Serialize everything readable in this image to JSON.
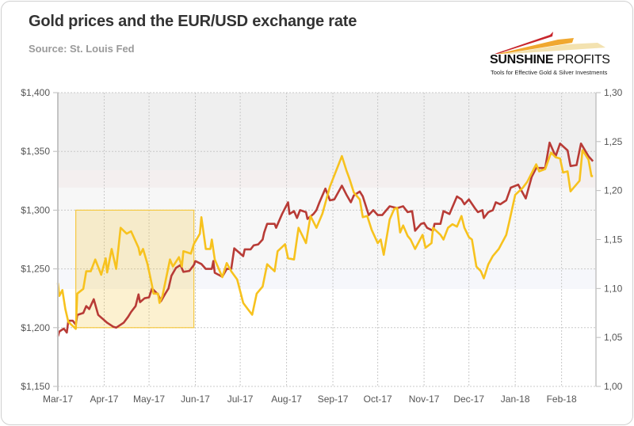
{
  "chart_data": {
    "type": "line",
    "title": "Gold prices and the EUR/USD exchange rate",
    "subtitle": "Source: St. Louis Fed",
    "xlim": [
      "2017-03-01",
      "2018-02-24"
    ],
    "x_tick_labels": [
      "Mar-17",
      "Apr-17",
      "May-17",
      "Jun-17",
      "Jul-17",
      "Aug-17",
      "Sep-17",
      "Oct-17",
      "Nov-17",
      "Dec-17",
      "Jan-18",
      "Feb-18"
    ],
    "x_ticks": [
      "2017-03-01",
      "2017-04-01",
      "2017-05-01",
      "2017-06-01",
      "2017-07-01",
      "2017-08-01",
      "2017-09-01",
      "2017-10-01",
      "2017-11-01",
      "2017-12-01",
      "2018-01-01",
      "2018-02-01"
    ],
    "y_left": {
      "lim": [
        1150,
        1400
      ],
      "ticks": [
        1150,
        1200,
        1250,
        1300,
        1350,
        1400
      ],
      "tick_labels": [
        "$1,150",
        "$1,200",
        "$1,250",
        "$1,300",
        "$1,350",
        "$1,400"
      ]
    },
    "y_right": {
      "lim": [
        1.0,
        1.3
      ],
      "ticks": [
        1.0,
        1.05,
        1.1,
        1.15,
        1.2,
        1.25,
        1.3
      ],
      "tick_labels": [
        "1,00",
        "1,05",
        "1,10",
        "1,15",
        "1,20",
        "1,25",
        "1,30"
      ]
    },
    "grid": true,
    "legend": "none",
    "series": [
      {
        "axis": "left",
        "color": "#f7c21e",
        "points": [
          [
            "2017-03-01",
            1238
          ],
          [
            "2017-03-02",
            1227
          ],
          [
            "2017-03-04",
            1232
          ],
          [
            "2017-03-06",
            1216
          ],
          [
            "2017-03-08",
            1205
          ],
          [
            "2017-03-13",
            1199
          ],
          [
            "2017-03-14",
            1229
          ],
          [
            "2017-03-18",
            1233
          ],
          [
            "2017-03-20",
            1248
          ],
          [
            "2017-03-23",
            1248
          ],
          [
            "2017-03-26",
            1258
          ],
          [
            "2017-03-30",
            1245
          ],
          [
            "2017-04-02",
            1259
          ],
          [
            "2017-04-03",
            1247
          ],
          [
            "2017-04-06",
            1267
          ],
          [
            "2017-04-09",
            1250
          ],
          [
            "2017-04-12",
            1285
          ],
          [
            "2017-04-16",
            1280
          ],
          [
            "2017-04-19",
            1282
          ],
          [
            "2017-04-24",
            1268
          ],
          [
            "2017-04-25",
            1262
          ],
          [
            "2017-04-27",
            1267
          ],
          [
            "2017-04-30",
            1254
          ],
          [
            "2017-05-03",
            1236
          ],
          [
            "2017-05-04",
            1229
          ],
          [
            "2017-05-07",
            1229
          ],
          [
            "2017-05-08",
            1221
          ],
          [
            "2017-05-10",
            1227
          ],
          [
            "2017-05-15",
            1258
          ],
          [
            "2017-05-17",
            1252
          ],
          [
            "2017-05-21",
            1260
          ],
          [
            "2017-05-23",
            1252
          ],
          [
            "2017-05-24",
            1265
          ],
          [
            "2017-05-29",
            1263
          ],
          [
            "2017-05-31",
            1271
          ],
          [
            "2017-06-04",
            1280
          ],
          [
            "2017-06-05",
            1294
          ],
          [
            "2017-06-08",
            1267
          ],
          [
            "2017-06-11",
            1267
          ],
          [
            "2017-06-12",
            1275
          ],
          [
            "2017-06-14",
            1258
          ],
          [
            "2017-06-19",
            1243
          ],
          [
            "2017-06-22",
            1255
          ],
          [
            "2017-06-25",
            1248
          ],
          [
            "2017-06-29",
            1241
          ],
          [
            "2017-07-03",
            1221
          ],
          [
            "2017-07-06",
            1216
          ],
          [
            "2017-07-09",
            1211
          ],
          [
            "2017-07-12",
            1229
          ],
          [
            "2017-07-16",
            1235
          ],
          [
            "2017-07-19",
            1254
          ],
          [
            "2017-07-24",
            1248
          ],
          [
            "2017-07-26",
            1265
          ],
          [
            "2017-07-31",
            1271
          ],
          [
            "2017-08-02",
            1259
          ],
          [
            "2017-08-06",
            1258
          ],
          [
            "2017-08-09",
            1285
          ],
          [
            "2017-08-14",
            1272
          ],
          [
            "2017-08-17",
            1295
          ],
          [
            "2017-08-21",
            1285
          ],
          [
            "2017-08-25",
            1297
          ],
          [
            "2017-08-30",
            1320
          ],
          [
            "2017-09-07",
            1346
          ],
          [
            "2017-09-10",
            1334
          ],
          [
            "2017-09-12",
            1327
          ],
          [
            "2017-09-15",
            1315
          ],
          [
            "2017-09-19",
            1309
          ],
          [
            "2017-09-21",
            1294
          ],
          [
            "2017-09-24",
            1295
          ],
          [
            "2017-09-27",
            1283
          ],
          [
            "2017-10-01",
            1272
          ],
          [
            "2017-10-03",
            1275
          ],
          [
            "2017-10-05",
            1262
          ],
          [
            "2017-10-09",
            1292
          ],
          [
            "2017-10-12",
            1301
          ],
          [
            "2017-10-14",
            1302
          ],
          [
            "2017-10-16",
            1281
          ],
          [
            "2017-10-18",
            1287
          ],
          [
            "2017-10-21",
            1278
          ],
          [
            "2017-10-23",
            1275
          ],
          [
            "2017-10-26",
            1267
          ],
          [
            "2017-10-31",
            1279
          ],
          [
            "2017-11-02",
            1268
          ],
          [
            "2017-11-06",
            1272
          ],
          [
            "2017-11-07",
            1285
          ],
          [
            "2017-11-12",
            1279
          ],
          [
            "2017-11-14",
            1275
          ],
          [
            "2017-11-17",
            1285
          ],
          [
            "2017-11-20",
            1288
          ],
          [
            "2017-11-23",
            1286
          ],
          [
            "2017-11-26",
            1295
          ],
          [
            "2017-11-28",
            1285
          ],
          [
            "2017-12-01",
            1277
          ],
          [
            "2017-12-03",
            1275
          ],
          [
            "2017-12-06",
            1252
          ],
          [
            "2017-12-09",
            1248
          ],
          [
            "2017-12-11",
            1242
          ],
          [
            "2017-12-14",
            1254
          ],
          [
            "2017-12-17",
            1261
          ],
          [
            "2017-12-21",
            1267
          ],
          [
            "2017-12-26",
            1279
          ],
          [
            "2017-12-28",
            1290
          ],
          [
            "2018-01-01",
            1313
          ],
          [
            "2018-01-06",
            1319
          ],
          [
            "2018-01-09",
            1324
          ],
          [
            "2018-01-15",
            1339
          ],
          [
            "2018-01-17",
            1333
          ],
          [
            "2018-01-21",
            1335
          ],
          [
            "2018-01-25",
            1349
          ],
          [
            "2018-01-28",
            1345
          ],
          [
            "2018-01-31",
            1344
          ],
          [
            "2018-02-02",
            1332
          ],
          [
            "2018-02-05",
            1333
          ],
          [
            "2018-02-07",
            1316
          ],
          [
            "2018-02-13",
            1325
          ],
          [
            "2018-02-15",
            1351
          ],
          [
            "2018-02-19",
            1343
          ],
          [
            "2018-02-21",
            1329
          ],
          [
            "2018-02-22",
            1329
          ]
        ]
      },
      {
        "axis": "right",
        "color": "#b83b36",
        "points": [
          [
            "2017-03-01",
            1.051
          ],
          [
            "2017-03-02",
            1.056
          ],
          [
            "2017-03-05",
            1.059
          ],
          [
            "2017-03-07",
            1.055
          ],
          [
            "2017-03-08",
            1.067
          ],
          [
            "2017-03-11",
            1.067
          ],
          [
            "2017-03-13",
            1.063
          ],
          [
            "2017-03-14",
            1.073
          ],
          [
            "2017-03-18",
            1.075
          ],
          [
            "2017-03-20",
            1.082
          ],
          [
            "2017-03-22",
            1.079
          ],
          [
            "2017-03-25",
            1.089
          ],
          [
            "2017-03-28",
            1.073
          ],
          [
            "2017-03-31",
            1.069
          ],
          [
            "2017-04-03",
            1.065
          ],
          [
            "2017-04-07",
            1.061
          ],
          [
            "2017-04-09",
            1.06
          ],
          [
            "2017-04-14",
            1.065
          ],
          [
            "2017-04-17",
            1.071
          ],
          [
            "2017-04-19",
            1.076
          ],
          [
            "2017-04-22",
            1.082
          ],
          [
            "2017-04-24",
            1.094
          ],
          [
            "2017-04-25",
            1.086
          ],
          [
            "2017-04-28",
            1.09
          ],
          [
            "2017-05-01",
            1.091
          ],
          [
            "2017-05-03",
            1.1
          ],
          [
            "2017-05-07",
            1.094
          ],
          [
            "2017-05-09",
            1.087
          ],
          [
            "2017-05-12",
            1.095
          ],
          [
            "2017-05-14",
            1.1
          ],
          [
            "2017-05-16",
            1.113
          ],
          [
            "2017-05-19",
            1.121
          ],
          [
            "2017-05-22",
            1.124
          ],
          [
            "2017-05-24",
            1.117
          ],
          [
            "2017-05-28",
            1.118
          ],
          [
            "2017-05-31",
            1.124
          ],
          [
            "2017-06-01",
            1.128
          ],
          [
            "2017-06-05",
            1.125
          ],
          [
            "2017-06-08",
            1.12
          ],
          [
            "2017-06-12",
            1.12
          ],
          [
            "2017-06-13",
            1.128
          ],
          [
            "2017-06-14",
            1.116
          ],
          [
            "2017-06-19",
            1.112
          ],
          [
            "2017-06-22",
            1.12
          ],
          [
            "2017-06-25",
            1.12
          ],
          [
            "2017-06-27",
            1.141
          ],
          [
            "2017-07-03",
            1.133
          ],
          [
            "2017-07-04",
            1.14
          ],
          [
            "2017-07-08",
            1.14
          ],
          [
            "2017-07-10",
            1.144
          ],
          [
            "2017-07-13",
            1.145
          ],
          [
            "2017-07-16",
            1.15
          ],
          [
            "2017-07-17",
            1.157
          ],
          [
            "2017-07-19",
            1.166
          ],
          [
            "2017-07-24",
            1.166
          ],
          [
            "2017-07-25",
            1.162
          ],
          [
            "2017-07-29",
            1.176
          ],
          [
            "2017-08-02",
            1.188
          ],
          [
            "2017-08-03",
            1.176
          ],
          [
            "2017-08-06",
            1.179
          ],
          [
            "2017-08-08",
            1.172
          ],
          [
            "2017-08-10",
            1.18
          ],
          [
            "2017-08-14",
            1.178
          ],
          [
            "2017-08-15",
            1.171
          ],
          [
            "2017-08-19",
            1.176
          ],
          [
            "2017-08-21",
            1.18
          ],
          [
            "2017-08-23",
            1.188
          ],
          [
            "2017-08-27",
            1.202
          ],
          [
            "2017-08-30",
            1.19
          ],
          [
            "2017-09-02",
            1.191
          ],
          [
            "2017-09-07",
            1.205
          ],
          [
            "2017-09-10",
            1.196
          ],
          [
            "2017-09-13",
            1.188
          ],
          [
            "2017-09-15",
            1.195
          ],
          [
            "2017-09-19",
            1.199
          ],
          [
            "2017-09-21",
            1.194
          ],
          [
            "2017-09-25",
            1.175
          ],
          [
            "2017-09-28",
            1.18
          ],
          [
            "2017-10-01",
            1.175
          ],
          [
            "2017-10-04",
            1.175
          ],
          [
            "2017-10-09",
            1.184
          ],
          [
            "2017-10-14",
            1.182
          ],
          [
            "2017-10-18",
            1.184
          ],
          [
            "2017-10-21",
            1.178
          ],
          [
            "2017-10-24",
            1.179
          ],
          [
            "2017-10-26",
            1.159
          ],
          [
            "2017-10-30",
            1.166
          ],
          [
            "2017-11-01",
            1.167
          ],
          [
            "2017-11-03",
            1.162
          ],
          [
            "2017-11-07",
            1.159
          ],
          [
            "2017-11-08",
            1.166
          ],
          [
            "2017-11-12",
            1.166
          ],
          [
            "2017-11-14",
            1.179
          ],
          [
            "2017-11-18",
            1.176
          ],
          [
            "2017-11-23",
            1.194
          ],
          [
            "2017-11-26",
            1.191
          ],
          [
            "2017-11-28",
            1.186
          ],
          [
            "2017-12-01",
            1.191
          ],
          [
            "2017-12-05",
            1.182
          ],
          [
            "2017-12-07",
            1.178
          ],
          [
            "2017-12-10",
            1.18
          ],
          [
            "2017-12-11",
            1.172
          ],
          [
            "2017-12-14",
            1.178
          ],
          [
            "2017-12-17",
            1.18
          ],
          [
            "2017-12-19",
            1.188
          ],
          [
            "2017-12-22",
            1.186
          ],
          [
            "2017-12-26",
            1.19
          ],
          [
            "2017-12-29",
            1.203
          ],
          [
            "2018-01-03",
            1.206
          ],
          [
            "2018-01-08",
            1.192
          ],
          [
            "2018-01-12",
            1.214
          ],
          [
            "2018-01-15",
            1.223
          ],
          [
            "2018-01-21",
            1.223
          ],
          [
            "2018-01-24",
            1.249
          ],
          [
            "2018-01-28",
            1.235
          ],
          [
            "2018-01-31",
            1.248
          ],
          [
            "2018-02-05",
            1.241
          ],
          [
            "2018-02-07",
            1.225
          ],
          [
            "2018-02-11",
            1.226
          ],
          [
            "2018-02-14",
            1.248
          ],
          [
            "2018-02-19",
            1.235
          ],
          [
            "2018-02-22",
            1.23
          ]
        ]
      }
    ],
    "annotations": [
      {
        "type": "highlight-box",
        "x": [
          "2017-03-13",
          "2017-05-31"
        ],
        "y_left": [
          1200,
          1300
        ],
        "color": "#f5c842"
      }
    ]
  },
  "logo": {
    "name_bold": "SUNSHINE",
    "name_regular": "PROFITS",
    "tagline": "Tools for Effective Gold & Silver Investments",
    "colors": [
      "#c8262c",
      "#f0a830",
      "#f3e2b0"
    ]
  }
}
